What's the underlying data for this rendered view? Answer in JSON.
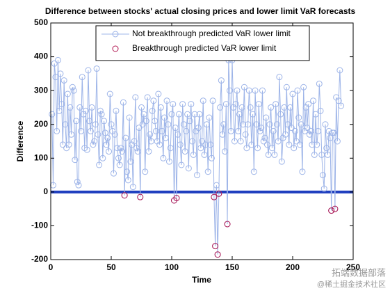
{
  "chart_data": {
    "type": "line",
    "title": "Difference between stocks' actual closing prices and lower limit VaR forecasts",
    "xlabel": "Time",
    "ylabel": "Difference",
    "xlim": [
      0,
      250
    ],
    "xticks": [
      0,
      50,
      100,
      150,
      200,
      250
    ],
    "ylim": [
      -200,
      500
    ],
    "yticks": [
      -200,
      -100,
      0,
      100,
      200,
      300,
      400,
      500
    ],
    "reference_line": {
      "y": 0,
      "color": "#1f3fbf"
    },
    "legend": "top",
    "watermark": [
      "拓端数据部落",
      "@稀土掘金技术社区"
    ],
    "series": [
      {
        "name": "Not breakthrough predicted VaR lower limit",
        "color": "#9db4e8",
        "line": true,
        "x": [
          1,
          2,
          3,
          4,
          5,
          6,
          7,
          8,
          9,
          10,
          11,
          12,
          13,
          14,
          15,
          16,
          17,
          18,
          19,
          20,
          21,
          22,
          23,
          24,
          25,
          26,
          27,
          28,
          29,
          30,
          31,
          32,
          33,
          34,
          35,
          36,
          37,
          38,
          39,
          40,
          41,
          42,
          43,
          44,
          45,
          46,
          47,
          48,
          49,
          50,
          51,
          52,
          53,
          54,
          55,
          56,
          57,
          58,
          59,
          60,
          61,
          62,
          63,
          64,
          65,
          66,
          67,
          68,
          69,
          70,
          71,
          72,
          73,
          74,
          75,
          76,
          77,
          78,
          79,
          80,
          81,
          82,
          83,
          84,
          85,
          86,
          87,
          88,
          89,
          90,
          91,
          92,
          93,
          94,
          95,
          96,
          97,
          98,
          99,
          100,
          101,
          102,
          103,
          104,
          105,
          106,
          107,
          108,
          109,
          110,
          111,
          112,
          113,
          114,
          115,
          116,
          117,
          118,
          119,
          120,
          121,
          122,
          123,
          124,
          125,
          126,
          127,
          128,
          129,
          130,
          131,
          132,
          133,
          134,
          135,
          136,
          137,
          138,
          139,
          140,
          141,
          142,
          143,
          144,
          145,
          146,
          147,
          148,
          149,
          150,
          151,
          152,
          153,
          154,
          155,
          156,
          157,
          158,
          159,
          160,
          161,
          162,
          163,
          164,
          165,
          166,
          167,
          168,
          169,
          170,
          171,
          172,
          173,
          174,
          175,
          176,
          177,
          178,
          179,
          180,
          181,
          182,
          183,
          184,
          185,
          186,
          187,
          188,
          189,
          190,
          191,
          192,
          193,
          194,
          195,
          196,
          197,
          198,
          199,
          200,
          201,
          202,
          203,
          204,
          205,
          206,
          207,
          208,
          209,
          210,
          211,
          212,
          213,
          214,
          215,
          216,
          217,
          218,
          219,
          220,
          221,
          222,
          223,
          224,
          225,
          226,
          227,
          228,
          229,
          230,
          231,
          232,
          233,
          234,
          235,
          236,
          237,
          238,
          239,
          240
        ],
        "values": [
          230,
          20,
          380,
          340,
          180,
          390,
          240,
          350,
          260,
          140,
          330,
          200,
          130,
          290,
          140,
          250,
          170,
          310,
          300,
          95,
          210,
          30,
          20,
          250,
          180,
          340,
          230,
          130,
          240,
          125,
          360,
          210,
          180,
          250,
          140,
          150,
          200,
          365,
          170,
          80,
          240,
          230,
          100,
          210,
          175,
          140,
          160,
          120,
          290,
          200,
          180,
          55,
          170,
          240,
          130,
          100,
          80,
          130,
          120,
          265,
          -10,
          160,
          60,
          35,
          220,
          90,
          140,
          15,
          150,
          280,
          130,
          120,
          190,
          -15,
          250,
          200,
          230,
          60,
          210,
          280,
          120,
          170,
          150,
          240,
          270,
          210,
          180,
          150,
          290,
          140,
          250,
          180,
          100,
          220,
          160,
          270,
          200,
          90,
          130,
          230,
          260,
          -25,
          190,
          -18,
          170,
          230,
          140,
          80,
          260,
          200,
          120,
          180,
          230,
          70,
          210,
          260,
          150,
          110,
          230,
          180,
          50,
          190,
          230,
          130,
          150,
          270,
          110,
          140,
          200,
          60,
          220,
          140,
          100,
          270,
          -15,
          -160,
          20,
          -185,
          -5,
          250,
          330,
          170,
          200,
          120,
          260,
          -95,
          390,
          300,
          180,
          390,
          250,
          150,
          260,
          300,
          180,
          230,
          150,
          250,
          200,
          310,
          170,
          130,
          200,
          300,
          250,
          140,
          230,
          60,
          300,
          200,
          130,
          260,
          180,
          190,
          300,
          150,
          160,
          220,
          140,
          110,
          200,
          250,
          130,
          180,
          110,
          260,
          200,
          150,
          340,
          230,
          90,
          160,
          250,
          170,
          310,
          200,
          140,
          250,
          190,
          290,
          130,
          180,
          150,
          300,
          220,
          140,
          200,
          60,
          310,
          180,
          250,
          190,
          260,
          170,
          180,
          140,
          270,
          110,
          230,
          140,
          180,
          320,
          240,
          110,
          50,
          10,
          200,
          130,
          110,
          180,
          160,
          -55,
          175,
          175,
          -50,
          280,
          150,
          270,
          360,
          255
        ]
      },
      {
        "name": "Breakthrough predicted VaR lower limit",
        "color": "#b0124e",
        "line": false,
        "x": [
          61,
          74,
          102,
          104,
          135,
          136,
          138,
          139,
          146,
          232,
          235
        ],
        "values": [
          -10,
          -15,
          -25,
          -18,
          -15,
          -160,
          -185,
          -5,
          -95,
          -55,
          -50
        ]
      }
    ]
  }
}
